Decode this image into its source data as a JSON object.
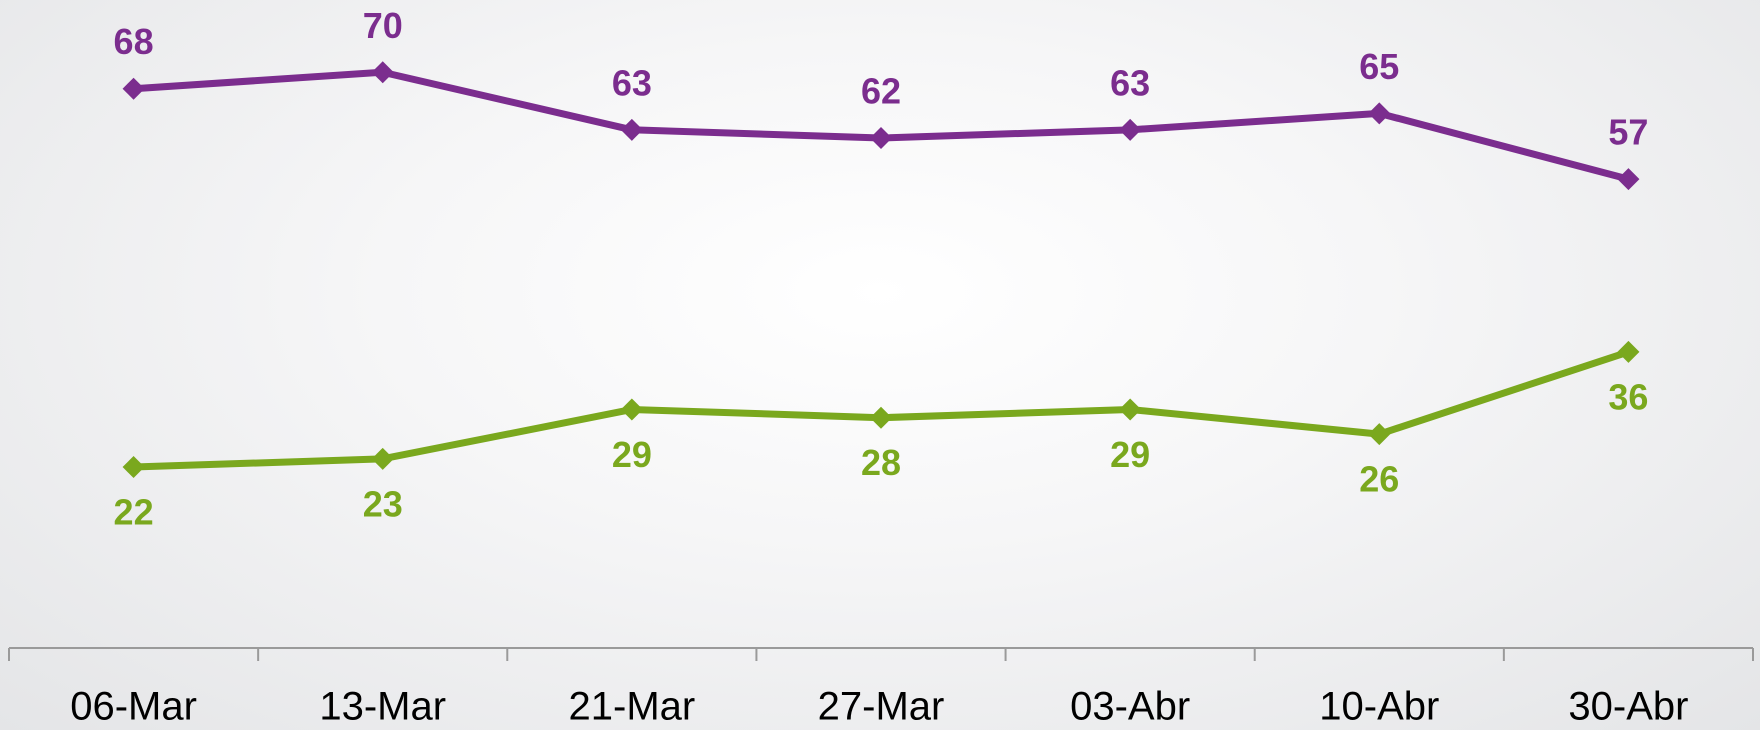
{
  "chart_data": {
    "type": "line",
    "x": [
      "06-Mar",
      "13-Mar",
      "21-Mar",
      "27-Mar",
      "03-Abr",
      "10-Abr",
      "30-Abr"
    ],
    "series": [
      {
        "color": "#7b2d8e",
        "values": [
          68,
          70,
          63,
          62,
          63,
          65,
          57
        ],
        "label_position": "above"
      },
      {
        "color": "#7aa81e",
        "values": [
          22,
          23,
          29,
          28,
          29,
          26,
          36
        ],
        "label_position": "below"
      }
    ],
    "ylim": [
      0,
      80
    ],
    "grid": false
  }
}
